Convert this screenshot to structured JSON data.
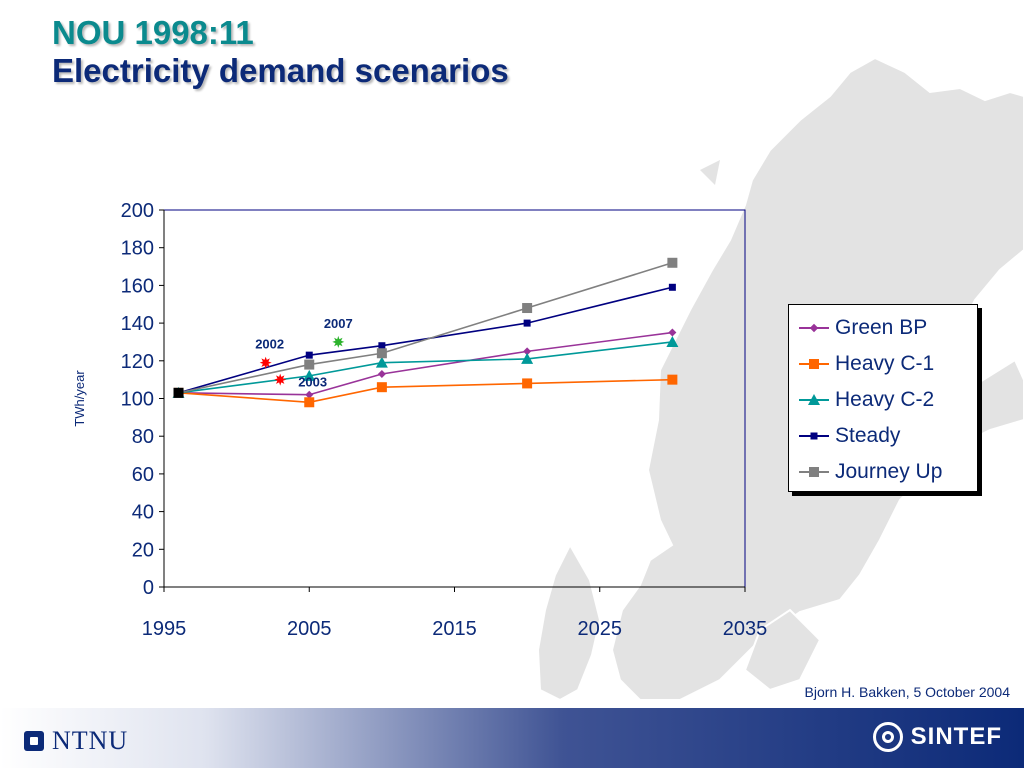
{
  "header": {
    "title_line1": "NOU 1998:11",
    "title_line2": "Electricity demand scenarios"
  },
  "chart_data": {
    "type": "line",
    "title": "",
    "xlabel": "",
    "ylabel": "TWh/year",
    "xlim": [
      1995,
      2035
    ],
    "ylim": [
      0,
      200
    ],
    "x_ticks": [
      1995,
      2005,
      2015,
      2025,
      2035
    ],
    "y_ticks": [
      0,
      20,
      40,
      60,
      80,
      100,
      120,
      140,
      160,
      180,
      200
    ],
    "grid": false,
    "legend_position": "right",
    "series": [
      {
        "name": "Green BP",
        "color": "#993399",
        "marker": "diamond",
        "points": [
          [
            1996,
            103
          ],
          [
            2005,
            102
          ],
          [
            2010,
            113
          ],
          [
            2020,
            125
          ],
          [
            2030,
            135
          ]
        ]
      },
      {
        "name": "Heavy C-1",
        "color": "#ff6600",
        "marker": "square",
        "points": [
          [
            1996,
            103
          ],
          [
            2005,
            98
          ],
          [
            2010,
            106
          ],
          [
            2020,
            108
          ],
          [
            2030,
            110
          ]
        ]
      },
      {
        "name": "Heavy C-2",
        "color": "#009999",
        "marker": "triangle",
        "points": [
          [
            1996,
            103
          ],
          [
            2005,
            112
          ],
          [
            2010,
            119
          ],
          [
            2020,
            121
          ],
          [
            2030,
            130
          ]
        ]
      },
      {
        "name": "Steady",
        "color": "#000080",
        "marker": "small-square",
        "points": [
          [
            1996,
            103
          ],
          [
            2005,
            123
          ],
          [
            2010,
            128
          ],
          [
            2020,
            140
          ],
          [
            2030,
            159
          ]
        ]
      },
      {
        "name": "Journey Up",
        "color": "#808080",
        "marker": "square",
        "points": [
          [
            1996,
            103
          ],
          [
            2005,
            118
          ],
          [
            2010,
            124
          ],
          [
            2020,
            148
          ],
          [
            2030,
            172
          ]
        ]
      }
    ],
    "annotations": [
      {
        "label": "2002",
        "x": 2002,
        "y": 119,
        "color": "#ff0000",
        "marker": "star"
      },
      {
        "label": "2003",
        "x": 2003,
        "y": 110,
        "color": "#ff0000",
        "marker": "star"
      },
      {
        "label": "2007",
        "x": 2007,
        "y": 130,
        "color": "#2db32d",
        "marker": "star"
      }
    ]
  },
  "footer": {
    "credit": "Bjorn H. Bakken, 5 October 2004",
    "logo_left_text": "NTNU",
    "logo_right_text": "SINTEF"
  }
}
